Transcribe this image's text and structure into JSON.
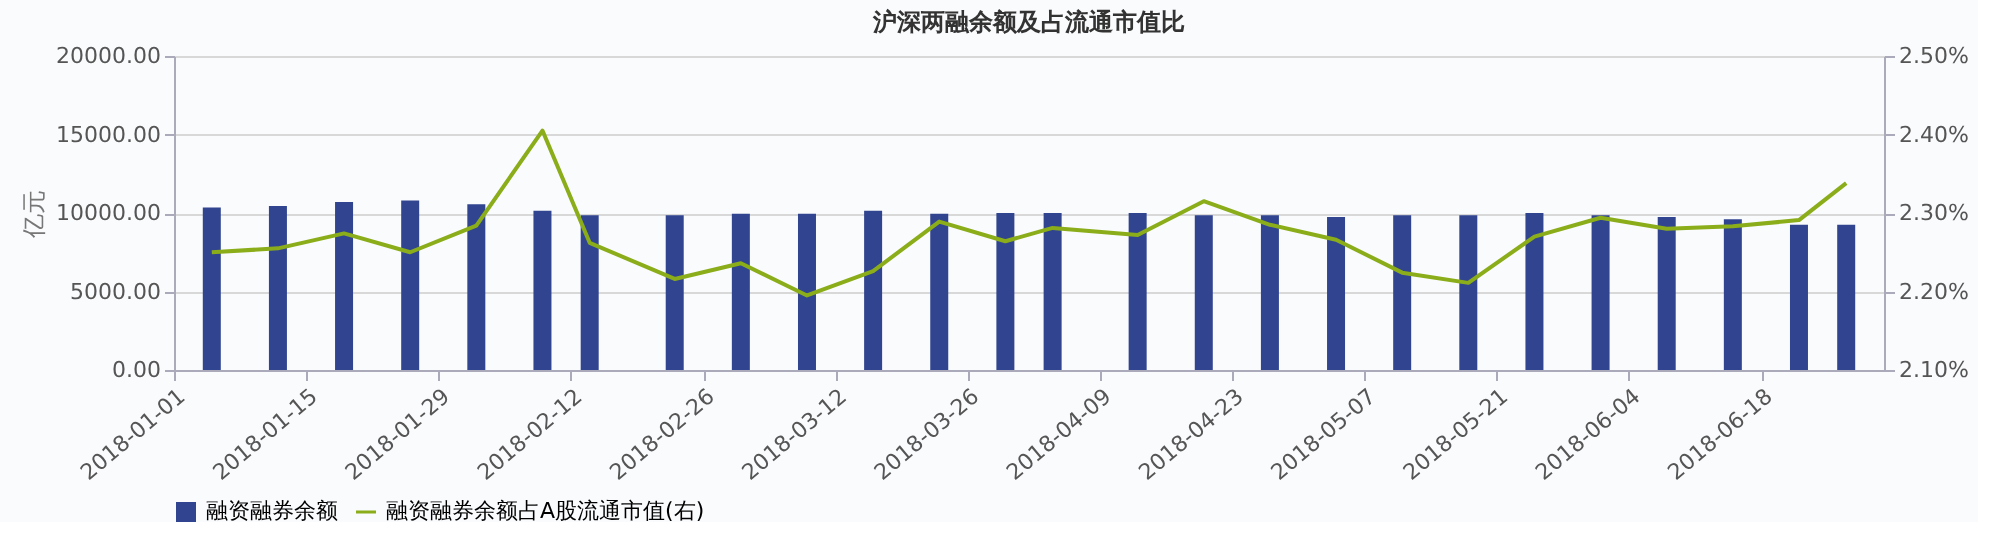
{
  "chart_data": {
    "type": "bar",
    "title": "沪深两融余额及占流通市值比",
    "ylabel": "亿元",
    "x": [
      "2018-01-05",
      "2018-01-12",
      "2018-01-19",
      "2018-01-26",
      "2018-02-02",
      "2018-02-09",
      "2018-02-14",
      "2018-02-23",
      "2018-03-02",
      "2018-03-09",
      "2018-03-16",
      "2018-03-23",
      "2018-03-30",
      "2018-04-04",
      "2018-04-13",
      "2018-04-20",
      "2018-04-27",
      "2018-05-04",
      "2018-05-11",
      "2018-05-18",
      "2018-05-25",
      "2018-06-01",
      "2018-06-08",
      "2018-06-15",
      "2018-06-22",
      "2018-06-27"
    ],
    "series": [
      {
        "name": "融资融券余额",
        "color": "#30448f",
        "values": [
          10350,
          10450,
          10700,
          10800,
          10550,
          10150,
          9850,
          9850,
          9950,
          9950,
          10150,
          9950,
          10000,
          10000,
          10000,
          9850,
          9850,
          9750,
          9850,
          9850,
          10000,
          9850,
          9750,
          9600,
          9250,
          9250
        ]
      },
      {
        "name": "融资融券余额占A股流通市值(右)",
        "type": "line",
        "axis": "y2",
        "color": "#8aad19",
        "values": [
          2.25,
          2.255,
          2.274,
          2.25,
          2.284,
          2.405,
          2.262,
          2.216,
          2.236,
          2.195,
          2.226,
          2.289,
          2.264,
          2.281,
          2.272,
          2.315,
          2.285,
          2.266,
          2.224,
          2.211,
          2.27,
          2.294,
          2.28,
          2.283,
          2.291,
          2.338
        ]
      }
    ],
    "xlim": [
      "2018-01-01",
      "2018-07-01"
    ],
    "xticks": [
      "2018-01-01",
      "2018-01-15",
      "2018-01-29",
      "2018-02-12",
      "2018-02-26",
      "2018-03-12",
      "2018-03-26",
      "2018-04-09",
      "2018-04-23",
      "2018-05-07",
      "2018-05-21",
      "2018-06-04",
      "2018-06-18"
    ],
    "ylim": [
      0,
      20000
    ],
    "yticks": [
      {
        "value": 0,
        "label": "0.00"
      },
      {
        "value": 5000,
        "label": "5000.00"
      },
      {
        "value": 10000,
        "label": "10000.00"
      },
      {
        "value": 15000,
        "label": "15000.00"
      },
      {
        "value": 20000,
        "label": "20000.00"
      }
    ],
    "y2lim": [
      2.1,
      2.5
    ],
    "y2ticks": [
      {
        "value": 2.1,
        "label": "2.10%"
      },
      {
        "value": 2.2,
        "label": "2.20%"
      },
      {
        "value": 2.3,
        "label": "2.30%"
      },
      {
        "value": 2.4,
        "label": "2.40%"
      },
      {
        "value": 2.5,
        "label": "2.50%"
      }
    ],
    "grid": "y",
    "legend": "bottom",
    "marker": "none",
    "line_style": "solid"
  }
}
